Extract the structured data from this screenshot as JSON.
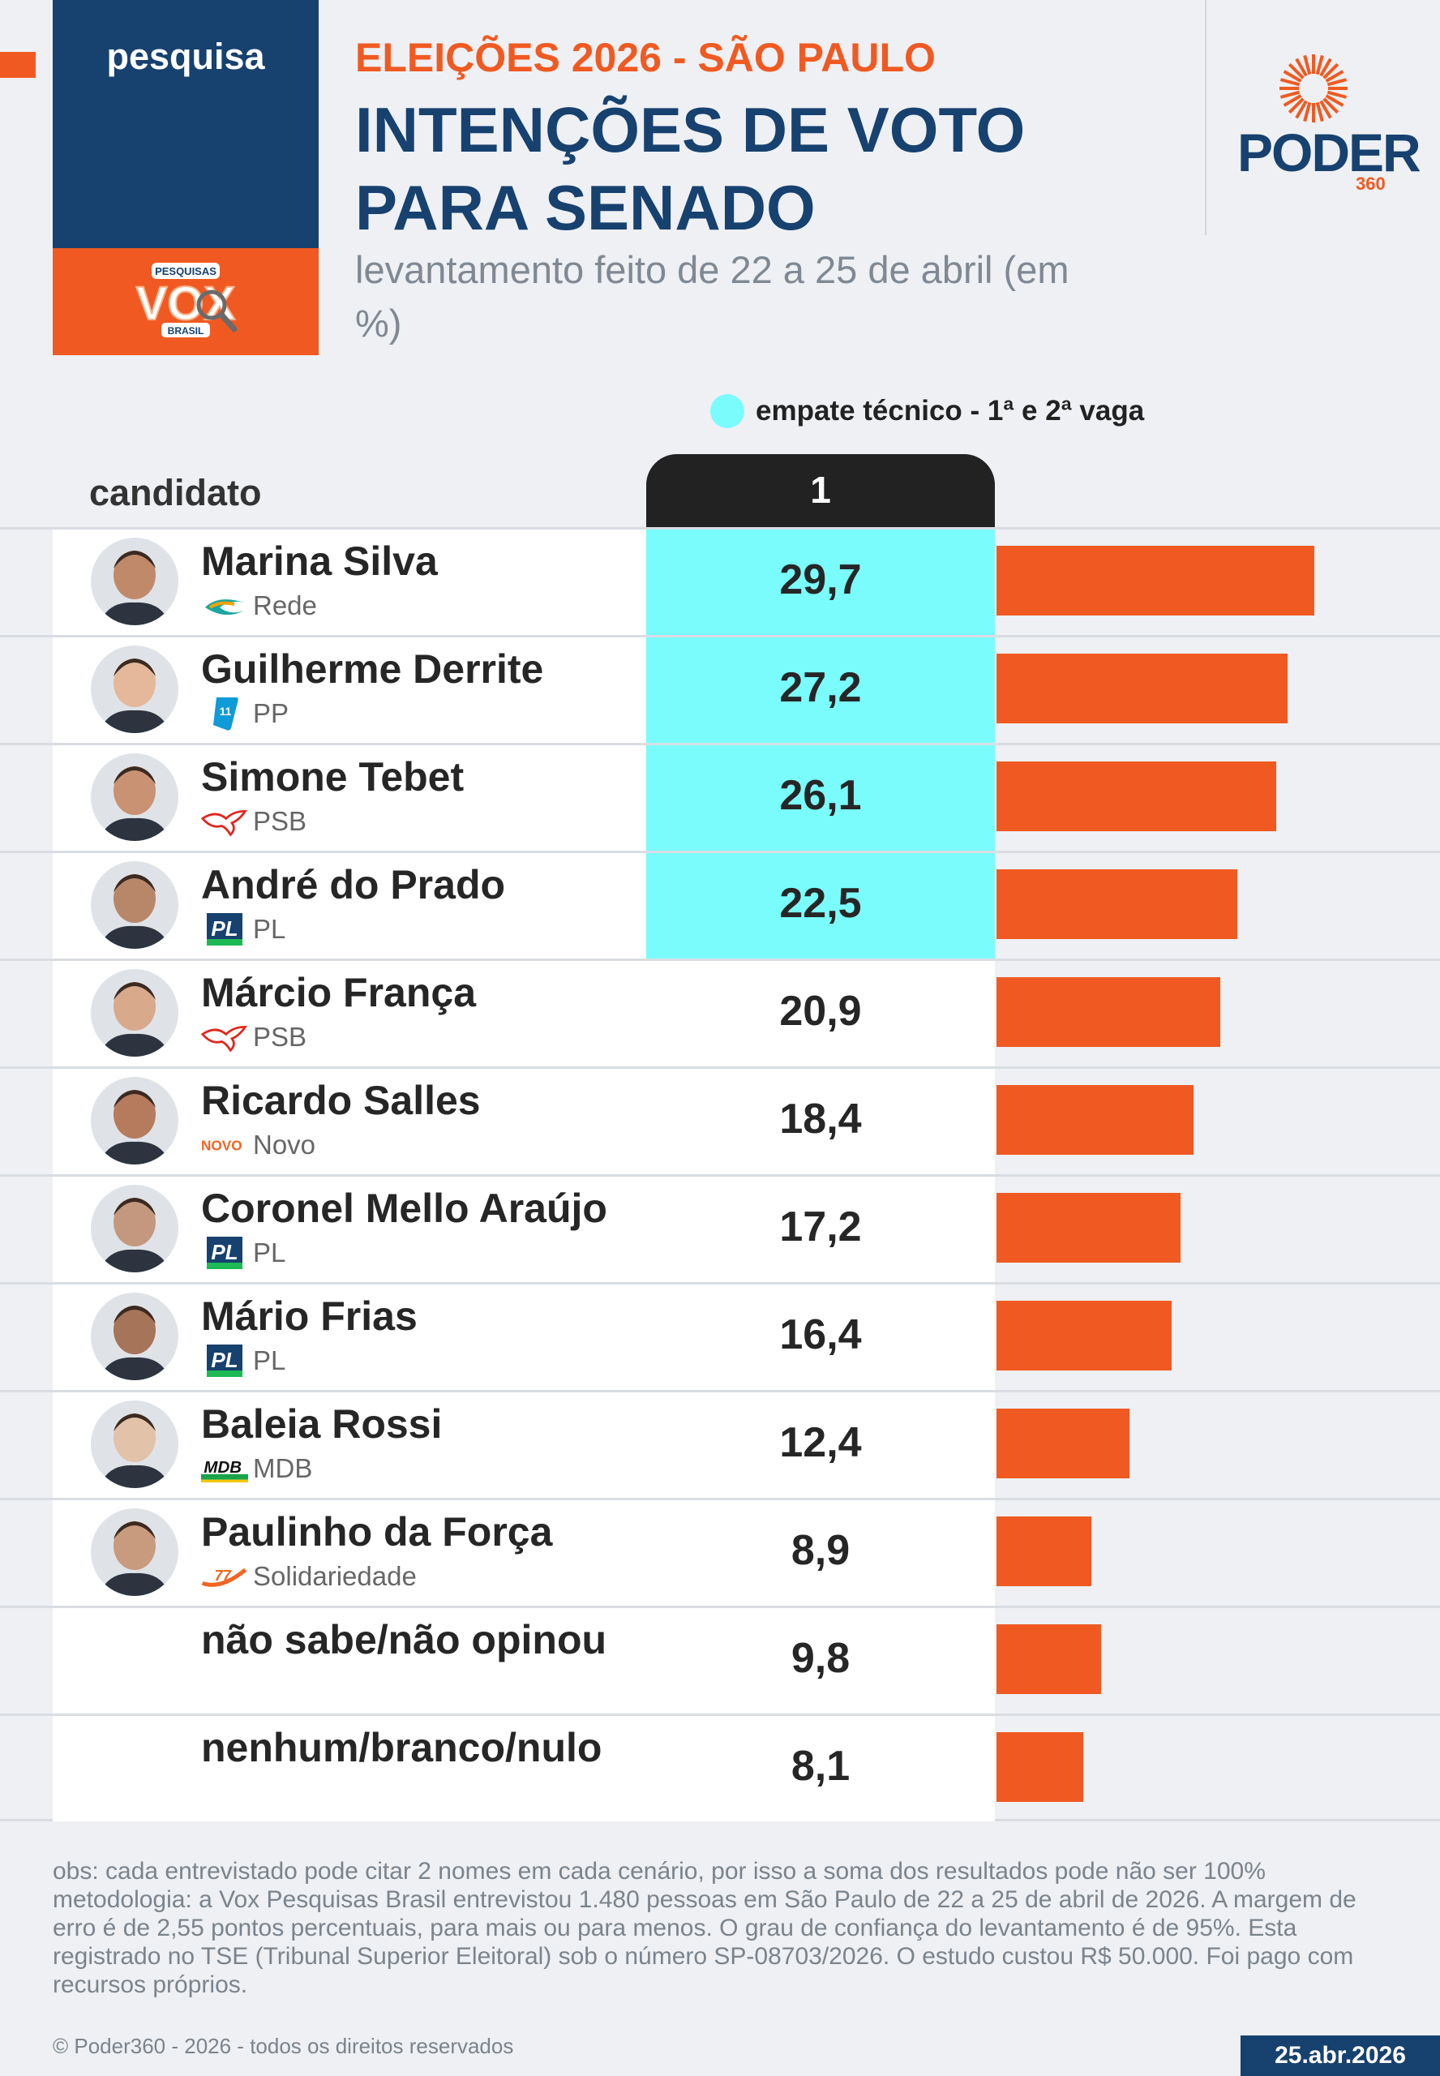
{
  "header": {
    "tag": "pesquisa",
    "vox_logo": {
      "line1": "PESQUISAS",
      "word": "VOX",
      "line2": "BRASIL"
    },
    "subtitle": "ELEIÇÕES 2026 - SÃO PAULO",
    "title": "INTENÇÕES DE VOTO PARA SENADO",
    "note": "levantamento feito de 22 a 25 de abril (em %)",
    "brand": {
      "name": "PODER",
      "number": "360"
    }
  },
  "legend": {
    "label": "empate técnico - 1ª e 2ª vaga",
    "color": "#7afcfd"
  },
  "table": {
    "candidate_header": "candidato",
    "column_header": "1"
  },
  "colors": {
    "bar": "#f05a22",
    "highlight": "#7afcfd",
    "navy": "#17416f"
  },
  "chart_data": {
    "type": "bar",
    "title": "INTENÇÕES DE VOTO PARA SENADO",
    "categories": [
      "Marina Silva",
      "Guilherme Derrite",
      "Simone Tebet",
      "André do Prado",
      "Márcio França",
      "Ricardo Salles",
      "Coronel Mello Araújo",
      "Mário Frias",
      "Baleia Rossi",
      "Paulinho da Força",
      "não sabe/não opinou",
      "nenhum/branco/nulo"
    ],
    "parties": [
      "Rede",
      "PP",
      "PSB",
      "PL",
      "PSB",
      "Novo",
      "PL",
      "PL",
      "MDB",
      "Solidariedade",
      "",
      ""
    ],
    "party_icons": [
      "rede-logo-icon",
      "pp-logo-icon",
      "psb-logo-icon",
      "pl-logo-icon",
      "psb-logo-icon",
      "novo-logo-icon",
      "pl-logo-icon",
      "pl-logo-icon",
      "mdb-logo-icon",
      "solidariedade-logo-icon",
      "",
      ""
    ],
    "values": [
      29.7,
      27.2,
      26.1,
      22.5,
      20.9,
      18.4,
      17.2,
      16.4,
      12.4,
      8.9,
      9.8,
      8.1
    ],
    "value_labels": [
      "29,7",
      "27,2",
      "26,1",
      "22,5",
      "20,9",
      "18,4",
      "17,2",
      "16,4",
      "12,4",
      "8,9",
      "9,8",
      "8,1"
    ],
    "technical_tie": [
      true,
      true,
      true,
      true,
      false,
      false,
      false,
      false,
      false,
      false,
      false,
      false
    ],
    "has_photo": [
      true,
      true,
      true,
      true,
      true,
      true,
      true,
      true,
      true,
      true,
      false,
      false
    ],
    "xlim": [
      0,
      30
    ],
    "unit": "%"
  },
  "footer": {
    "obs": "obs: cada entrevistado pode citar 2 nomes em cada cenário, por isso a soma dos resultados pode não ser 100%",
    "methodology": "metodologia: a Vox Pesquisas Brasil entrevistou 1.480 pessoas em São Paulo de 22 a 25 de abril de 2026. A margem de erro é de 2,55 pontos percentuais, para mais ou para menos. O grau de confiança do levantamento é de 95%. Esta registrado no TSE (Tribunal Superior Eleitoral) sob o número SP-08703/2026. O estudo custou R$ 50.000. Foi pago com recursos próprios.",
    "copyright": "© Poder360 - 2026 - todos os direitos reservados",
    "date": "25.abr.2026"
  }
}
